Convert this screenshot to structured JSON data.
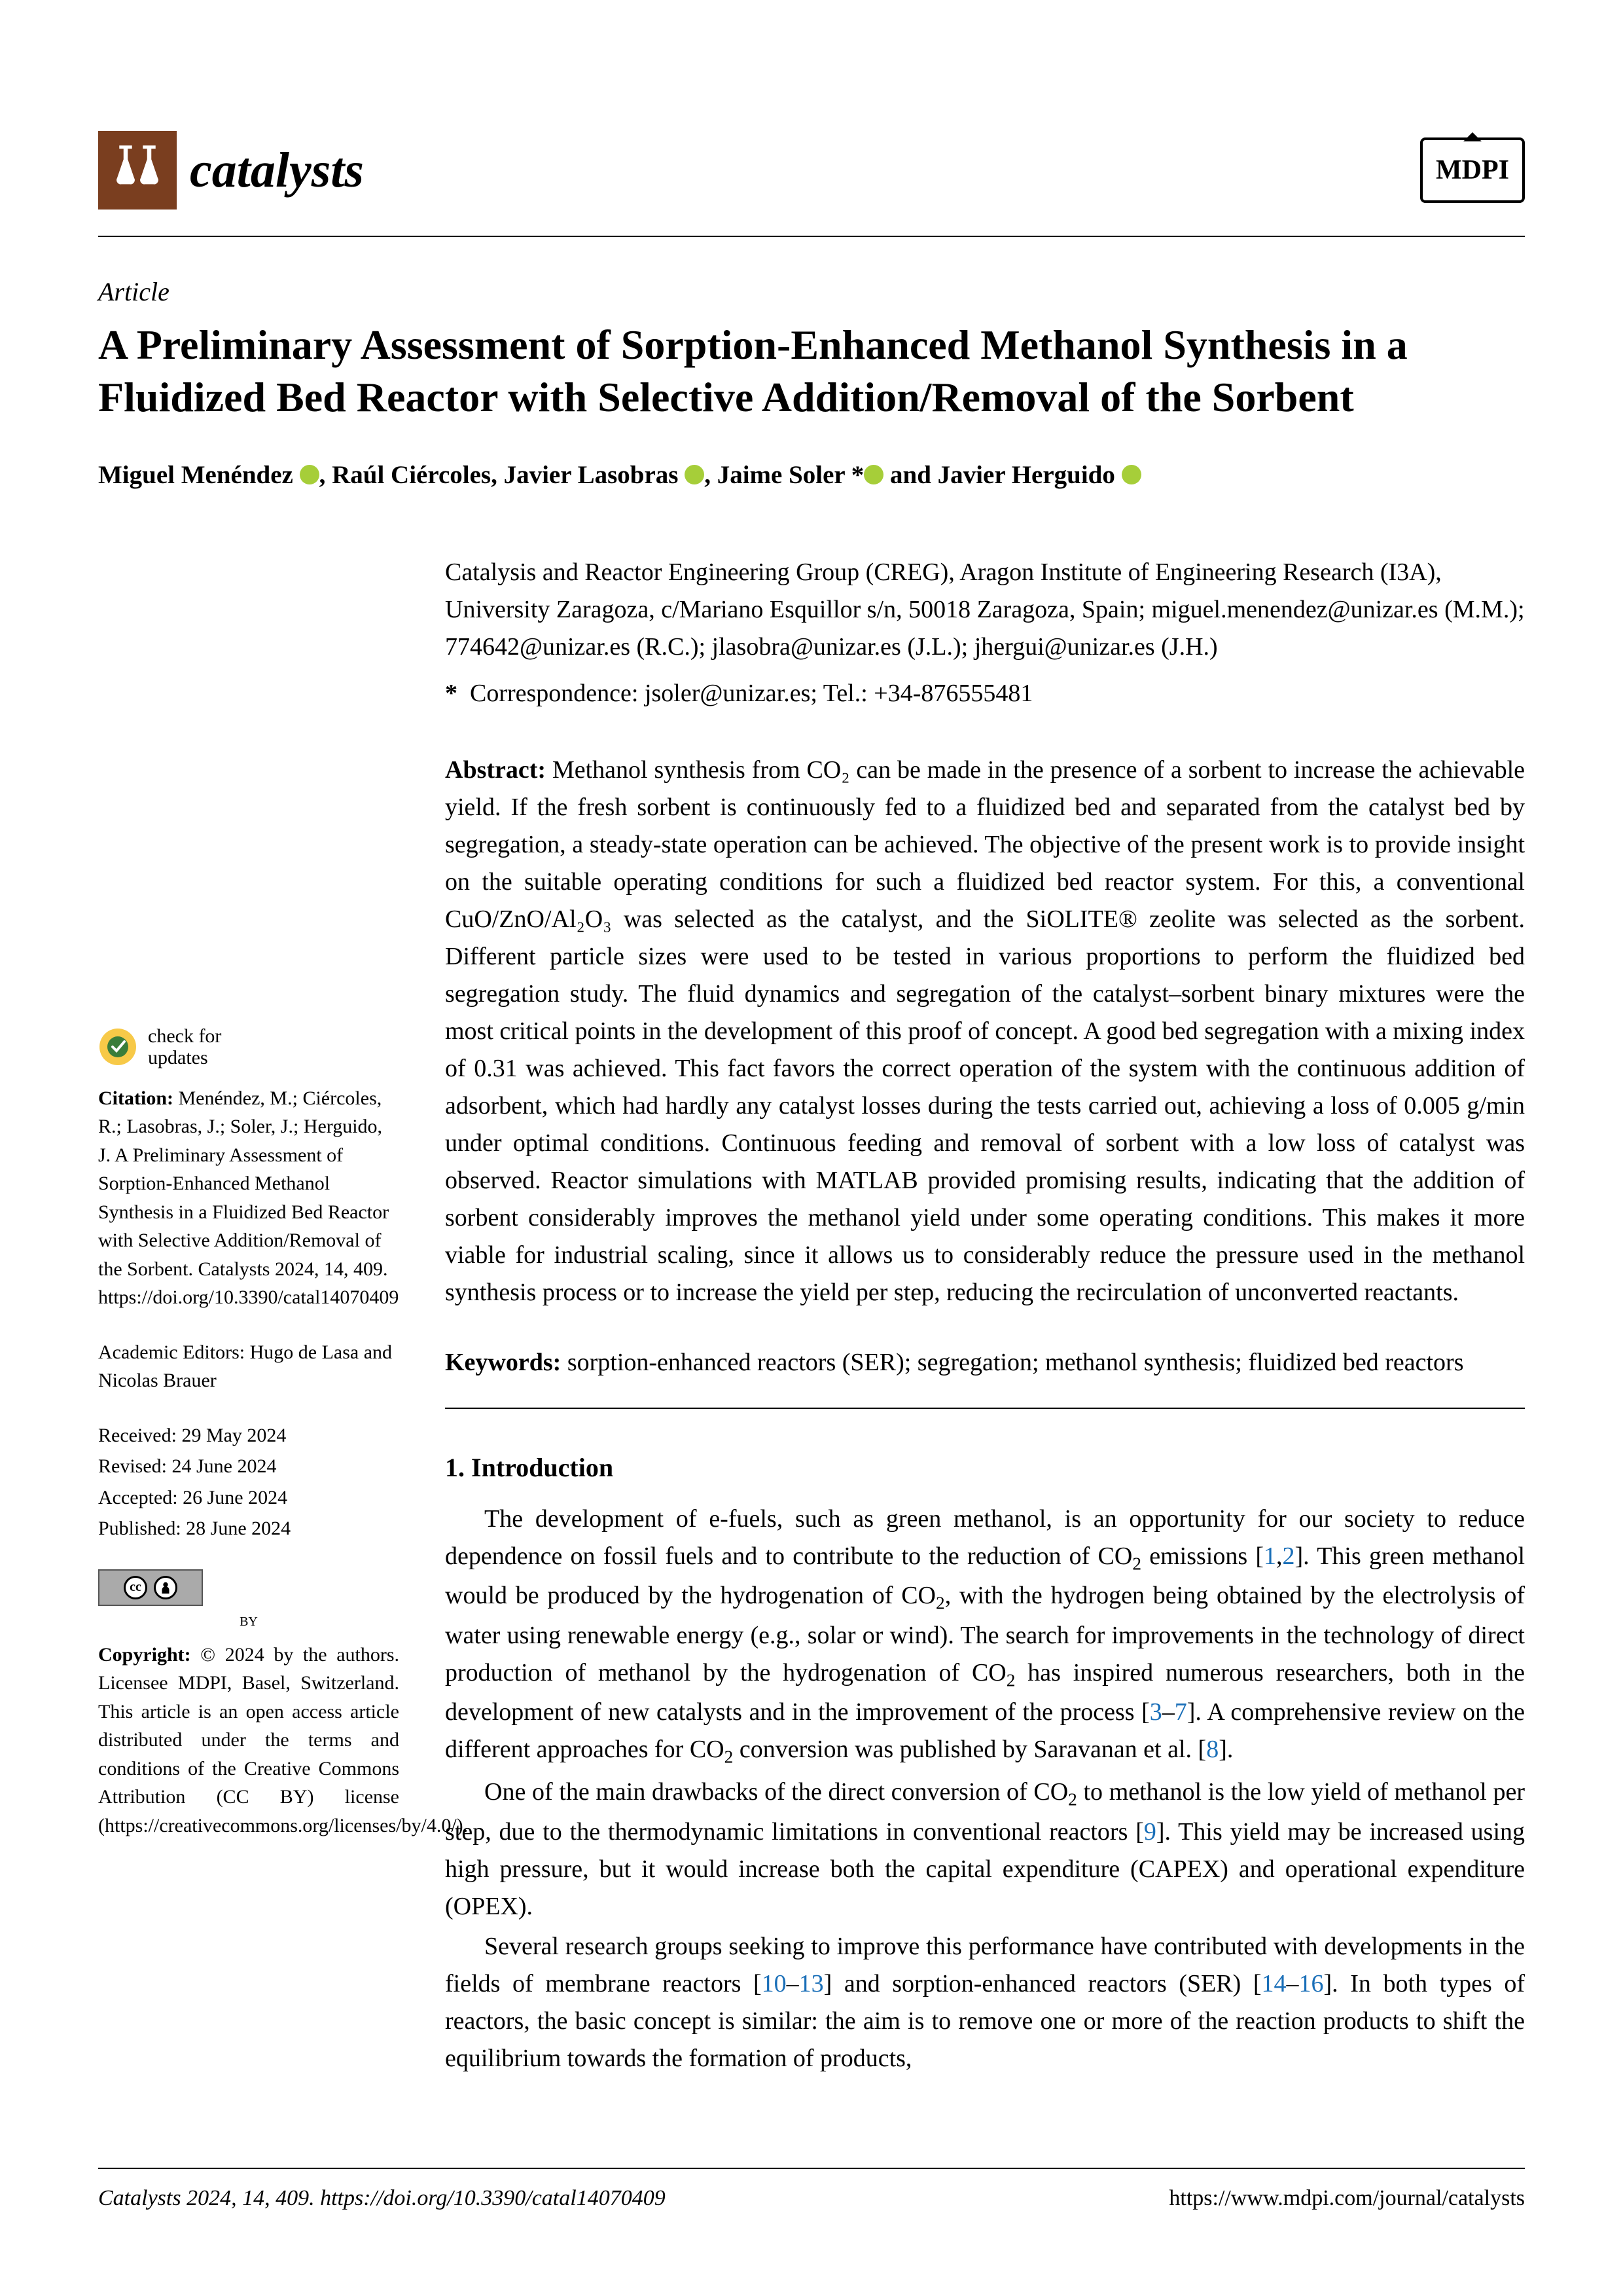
{
  "journal": {
    "name": "catalysts",
    "publisher": "MDPI"
  },
  "article": {
    "type": "Article",
    "title": "A Preliminary Assessment of Sorption-Enhanced Methanol Synthesis in a Fluidized Bed Reactor with Selective Addition/Removal of the Sorbent",
    "authors_html": "Miguel Menéndez <span class='orcid'></span>, Raúl Ciércoles, Javier Lasobras <span class='orcid'></span>, Jaime Soler *<span class='orcid'></span> and Javier Herguido <span class='orcid'></span>",
    "affiliation": "Catalysis and Reactor Engineering Group (CREG), Aragon Institute of Engineering Research (I3A), University Zaragoza, c/Mariano Esquillor s/n, 50018 Zaragoza, Spain; miguel.menendez@unizar.es (M.M.); 774642@unizar.es (R.C.); jlasobra@unizar.es (J.L.); jhergui@unizar.es (J.H.)",
    "correspondence": "Correspondence: jsoler@unizar.es; Tel.: +34-876555481"
  },
  "abstract": {
    "label": "Abstract:",
    "text": "Methanol synthesis from CO₂ can be made in the presence of a sorbent to increase the achievable yield. If the fresh sorbent is continuously fed to a fluidized bed and separated from the catalyst bed by segregation, a steady-state operation can be achieved. The objective of the present work is to provide insight on the suitable operating conditions for such a fluidized bed reactor system. For this, a conventional CuO/ZnO/Al₂O₃ was selected as the catalyst, and the SiOLITE® zeolite was selected as the sorbent. Different particle sizes were used to be tested in various proportions to perform the fluidized bed segregation study. The fluid dynamics and segregation of the catalyst–sorbent binary mixtures were the most critical points in the development of this proof of concept. A good bed segregation with a mixing index of 0.31 was achieved. This fact favors the correct operation of the system with the continuous addition of adsorbent, which had hardly any catalyst losses during the tests carried out, achieving a loss of 0.005 g/min under optimal conditions. Continuous feeding and removal of sorbent with a low loss of catalyst was observed. Reactor simulations with MATLAB provided promising results, indicating that the addition of sorbent considerably improves the methanol yield under some operating conditions. This makes it more viable for industrial scaling, since it allows us to considerably reduce the pressure used in the methanol synthesis process or to increase the yield per step, reducing the recirculation of unconverted reactants."
  },
  "keywords": {
    "label": "Keywords:",
    "text": "sorption-enhanced reactors (SER); segregation; methanol synthesis; fluidized bed reactors"
  },
  "sidebar": {
    "check_updates": "check for\nupdates",
    "citation_label": "Citation:",
    "citation": "Menéndez, M.; Ciércoles, R.; Lasobras, J.; Soler, J.; Herguido, J. A Preliminary Assessment of Sorption-Enhanced Methanol Synthesis in a Fluidized Bed Reactor with Selective Addition/Removal of the Sorbent. Catalysts 2024, 14, 409. https://doi.org/10.3390/catal14070409",
    "editors": "Academic Editors: Hugo de Lasa and Nicolas Brauer",
    "received": "Received: 29 May 2024",
    "revised": "Revised: 24 June 2024",
    "accepted": "Accepted: 26 June 2024",
    "published": "Published: 28 June 2024",
    "by_label": "BY",
    "copyright_label": "Copyright:",
    "copyright": "© 2024 by the authors. Licensee MDPI, Basel, Switzerland. This article is an open access article distributed under the terms and conditions of the Creative Commons Attribution (CC BY) license (https://creativecommons.org/licenses/by/4.0/)."
  },
  "section1": {
    "heading": "1. Introduction",
    "p1_pre": "The development of e-fuels, such as green methanol, is an opportunity for our society to reduce dependence on fossil fuels and to contribute to the reduction of CO",
    "p1_mid": " emissions [",
    "c1": "1",
    "c2": "2",
    "p1_mid2": "]. This green methanol would be produced by the hydrogenation of CO",
    "p1_mid3": ", with the hydrogen being obtained by the electrolysis of water using renewable energy (e.g., solar or wind). The search for improvements in the technology of direct production of methanol by the hydrogenation of CO",
    "p1_mid4": " has inspired numerous researchers, both in the development of new catalysts and in the improvement of the process [",
    "c3": "3",
    "c7": "7",
    "p1_mid5": "]. A comprehensive review on the different approaches for CO",
    "p1_end": " conversion was published by Saravanan et al. [",
    "c8": "8",
    "p1_close": "].",
    "p2_pre": "One of the main drawbacks of the direct conversion of CO",
    "p2_mid": " to methanol is the low yield of methanol per step, due to the thermodynamic limitations in conventional reactors [",
    "c9": "9",
    "p2_end": "]. This yield may be increased using high pressure, but it would increase both the capital expenditure (CAPEX) and operational expenditure (OPEX).",
    "p3_pre": "Several research groups seeking to improve this performance have contributed with developments in the fields of membrane reactors [",
    "c10": "10",
    "c13": "13",
    "p3_mid": "] and sorption-enhanced reactors (SER) [",
    "c14": "14",
    "c16": "16",
    "p3_end": "]. In both types of reactors, the basic concept is similar: the aim is to remove one or more of the reaction products to shift the equilibrium towards the formation of products,"
  },
  "footer": {
    "left": "Catalysts 2024, 14, 409. https://doi.org/10.3390/catal14070409",
    "right": "https://www.mdpi.com/journal/catalysts"
  },
  "colors": {
    "logo_bg": "#7a3e1f",
    "orcid": "#a6ce39",
    "link": "#1a6fb8",
    "check_yellow": "#f7c948",
    "check_green": "#3a7d3a"
  }
}
